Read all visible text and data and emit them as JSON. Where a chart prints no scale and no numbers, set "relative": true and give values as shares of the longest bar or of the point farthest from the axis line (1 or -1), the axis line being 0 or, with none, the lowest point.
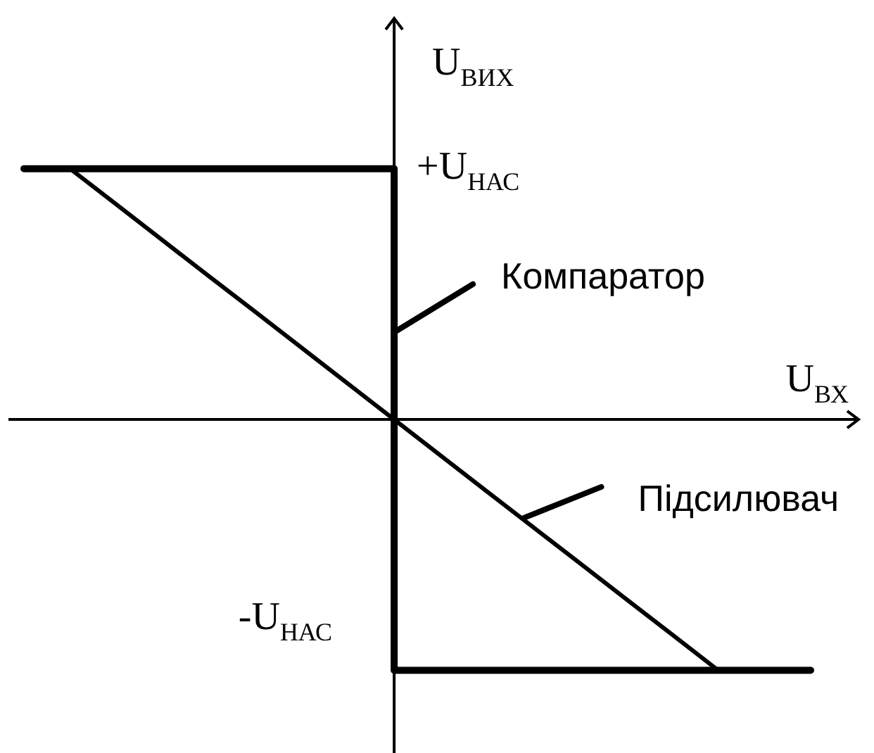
{
  "chart_data": {
    "type": "line",
    "relative": true,
    "xlabel": "U$_{ВХ}$",
    "ylabel": "U$_{ВИХ}$",
    "categories": [
      null,
      null,
      null,
      null,
      null,
      null,
      null,
      null,
      null,
      null,
      null,
      null,
      null,
      null,
      null,
      null,
      null,
      null
    ],
    "annotations": [
      "+U$_{НАС}$",
      "-U$_{НАС}$"
    ],
    "series": [
      {
        "name": "Компаратор",
        "type": "step",
        "color": "#000000",
        "values": [
          1,
          1,
          1,
          1,
          1,
          1,
          1,
          1,
          -1,
          -1,
          -1,
          -1,
          -1,
          -1,
          -1,
          -1,
          -1,
          -1
        ]
      },
      {
        "name": "Підсилювач",
        "color": "#000000",
        "values": [
          null,
          1,
          0.857,
          0.714,
          0.571,
          0.429,
          0.286,
          0.143,
          0,
          -0.143,
          -0.286,
          -0.429,
          -0.571,
          -0.714,
          -0.857,
          -1,
          null,
          null
        ]
      }
    ]
  }
}
